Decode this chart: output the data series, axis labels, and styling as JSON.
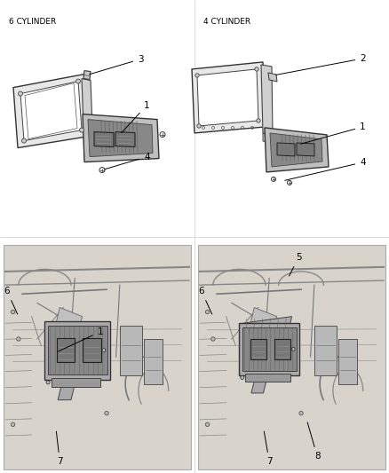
{
  "background_color": "#ffffff",
  "fig_width": 4.38,
  "fig_height": 5.33,
  "dpi": 100,
  "text_color": "#000000",
  "label_fontsize": 6.5,
  "number_fontsize": 7.5,
  "sketch_color": "#555555",
  "line_color": "#333333"
}
